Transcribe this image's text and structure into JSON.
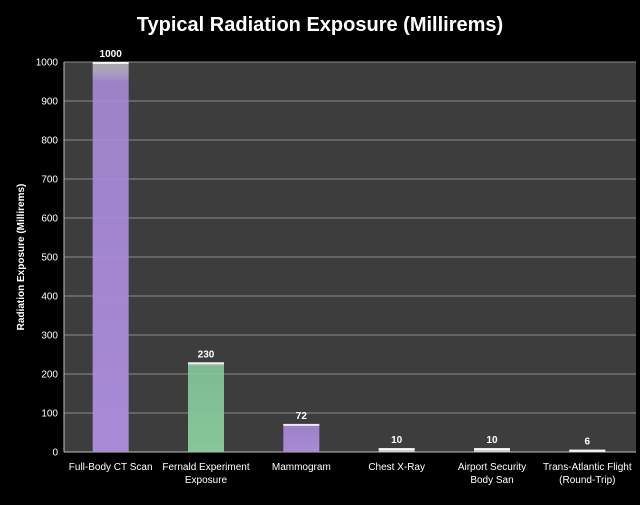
{
  "chart_data": {
    "type": "bar",
    "title": "Typical Radiation Exposure (Millirems)",
    "xlabel": "",
    "ylabel": "Radiation Exposure (Millirems)",
    "ylim": [
      0,
      1000
    ],
    "yticks": [
      0,
      100,
      200,
      300,
      400,
      500,
      600,
      700,
      800,
      900,
      1000
    ],
    "grid": true,
    "categories": [
      [
        "Full-Body CT Scan"
      ],
      [
        "Fernald Experiment",
        "Exposure"
      ],
      [
        "Mammogram"
      ],
      [
        "Chest X-Ray"
      ],
      [
        "Airport Security",
        "Body San"
      ],
      [
        "Trans-Atlantic Flight",
        "(Round-Trip)"
      ]
    ],
    "values": [
      1000,
      230,
      72,
      10,
      10,
      6
    ],
    "data_labels": [
      "1000",
      "230",
      "72",
      "10",
      "10",
      "6"
    ],
    "bar_colors": [
      "#a88ad6",
      "#86c89a",
      "#a88ad6",
      "#d4d4d4",
      "#d4d4d4",
      "#d4d4d4"
    ]
  },
  "colors": {
    "background": "#000000",
    "plot_area": "#3d3d3d",
    "gridline": "#8a8a8a",
    "text": "#ffffff"
  }
}
